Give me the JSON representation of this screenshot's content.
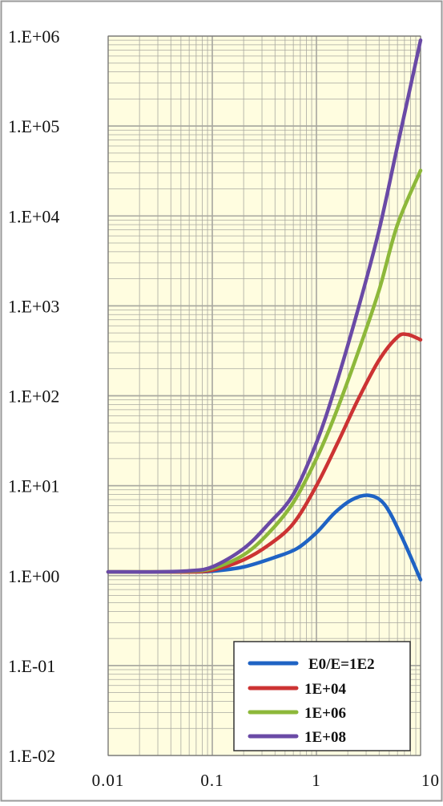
{
  "chart_data": {
    "type": "line",
    "title": "",
    "xlabel": "",
    "ylabel": "",
    "xscale": "log",
    "yscale": "log",
    "xlim": [
      0.01,
      10
    ],
    "ylim": [
      0.01,
      1000000
    ],
    "grid": true,
    "legend_position": "bottom-right",
    "x_tick_labels": [
      "0.01",
      "0.1",
      "1",
      "10"
    ],
    "y_tick_labels": [
      "1.E-02",
      "1.E-01",
      "1.E+00",
      "1.E+01",
      "1.E+02",
      "1.E+03",
      "1.E+04",
      "1.E+05",
      "1.E+06"
    ],
    "colors": {
      "plot_background": "#fffde0",
      "grid": "#a8a8a0",
      "frame": "#9a9a9a"
    },
    "series": [
      {
        "name": "E0/E=1E2",
        "color": "#1f63c4",
        "x": [
          0.01,
          0.03,
          0.06,
          0.1,
          0.2,
          0.4,
          0.65,
          1.0,
          1.5,
          2.2,
          3.2,
          4.5,
          6.5,
          10
        ],
        "y": [
          1.1,
          1.1,
          1.1,
          1.12,
          1.25,
          1.6,
          2.0,
          3.0,
          5.0,
          7.0,
          7.8,
          6.2,
          2.8,
          0.9
        ]
      },
      {
        "name": "1E+04",
        "color": "#cc3333",
        "x": [
          0.01,
          0.03,
          0.06,
          0.1,
          0.2,
          0.35,
          0.6,
          1.0,
          1.6,
          2.5,
          4.0,
          6.0,
          7.5,
          10
        ],
        "y": [
          1.1,
          1.1,
          1.1,
          1.15,
          1.5,
          2.2,
          3.8,
          10,
          30,
          90,
          250,
          450,
          480,
          420
        ]
      },
      {
        "name": "1E+06",
        "color": "#8db83a",
        "x": [
          0.01,
          0.03,
          0.06,
          0.1,
          0.2,
          0.35,
          0.6,
          1.0,
          1.5,
          2.5,
          4.0,
          6.0,
          10
        ],
        "y": [
          1.1,
          1.1,
          1.12,
          1.2,
          1.7,
          3.0,
          6.5,
          20,
          60,
          300,
          1500,
          8000,
          32000
        ]
      },
      {
        "name": "1E+08",
        "color": "#6a4aa6",
        "x": [
          0.01,
          0.03,
          0.06,
          0.1,
          0.2,
          0.35,
          0.6,
          1.0,
          1.5,
          2.5,
          4.0,
          6.0,
          10
        ],
        "y": [
          1.1,
          1.1,
          1.13,
          1.25,
          2.0,
          3.8,
          8.0,
          30,
          120,
          900,
          7000,
          60000,
          900000
        ]
      }
    ]
  }
}
